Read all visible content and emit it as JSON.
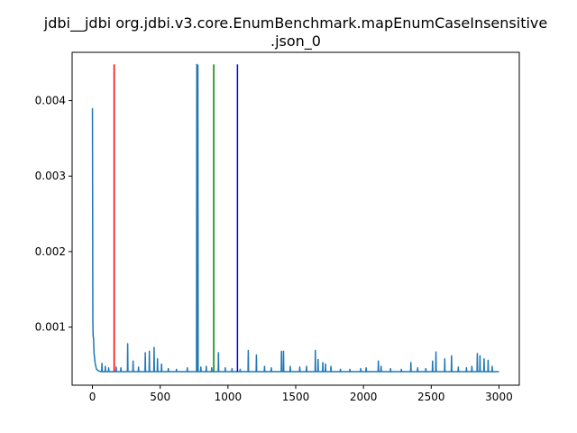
{
  "chart_data": {
    "type": "line",
    "title_line1": "jdbi__jdbi org.jdbi.v3.core.EnumBenchmark.mapEnumCaseInsensitive",
    "title_line2": ".json_0",
    "xlabel": "",
    "ylabel": "",
    "xlim": [
      -150,
      3150
    ],
    "ylim": [
      0.00023,
      0.00464
    ],
    "x_ticks": [
      0,
      500,
      1000,
      1500,
      2000,
      2500,
      3000
    ],
    "x_tick_labels": [
      "0",
      "500",
      "1000",
      "1500",
      "2000",
      "2500",
      "3000"
    ],
    "y_ticks": [
      0.001,
      0.002,
      0.003,
      0.004
    ],
    "y_tick_labels": [
      "0.001",
      "0.002",
      "0.003",
      "0.004"
    ],
    "grid": false,
    "series_color": "#1f77b4",
    "series": {
      "baseline": 0.00041,
      "start_points": [
        [
          0,
          0.0039
        ],
        [
          3,
          0.00105
        ],
        [
          5,
          0.00088
        ],
        [
          8,
          0.00085
        ],
        [
          12,
          0.00065
        ],
        [
          20,
          0.00052
        ],
        [
          30,
          0.00044
        ],
        [
          45,
          0.00042
        ],
        [
          60,
          0.00041
        ]
      ],
      "spikes": [
        [
          70,
          0.00052
        ],
        [
          95,
          0.00048
        ],
        [
          120,
          0.00046
        ],
        [
          175,
          0.00047
        ],
        [
          210,
          0.00046
        ],
        [
          260,
          0.00078
        ],
        [
          300,
          0.00055
        ],
        [
          340,
          0.00047
        ],
        [
          390,
          0.00066
        ],
        [
          420,
          0.00068
        ],
        [
          455,
          0.00073
        ],
        [
          480,
          0.00058
        ],
        [
          510,
          0.00051
        ],
        [
          560,
          0.00045
        ],
        [
          620,
          0.00044
        ],
        [
          700,
          0.00046
        ],
        [
          770,
          0.00448
        ],
        [
          778,
          0.00447
        ],
        [
          800,
          0.00047
        ],
        [
          840,
          0.00048
        ],
        [
          880,
          0.00046
        ],
        [
          930,
          0.00066
        ],
        [
          980,
          0.00046
        ],
        [
          1030,
          0.00045
        ],
        [
          1090,
          0.00044
        ],
        [
          1150,
          0.00069
        ],
        [
          1210,
          0.00063
        ],
        [
          1270,
          0.00048
        ],
        [
          1320,
          0.00046
        ],
        [
          1395,
          0.00068
        ],
        [
          1410,
          0.00068
        ],
        [
          1460,
          0.00048
        ],
        [
          1530,
          0.00047
        ],
        [
          1580,
          0.00048
        ],
        [
          1645,
          0.00069
        ],
        [
          1665,
          0.00057
        ],
        [
          1700,
          0.00053
        ],
        [
          1720,
          0.00051
        ],
        [
          1760,
          0.00048
        ],
        [
          1830,
          0.00044
        ],
        [
          1900,
          0.00044
        ],
        [
          1980,
          0.00045
        ],
        [
          2020,
          0.00046
        ],
        [
          2110,
          0.00055
        ],
        [
          2130,
          0.00048
        ],
        [
          2200,
          0.00045
        ],
        [
          2280,
          0.00044
        ],
        [
          2350,
          0.00053
        ],
        [
          2400,
          0.00046
        ],
        [
          2460,
          0.00045
        ],
        [
          2510,
          0.00055
        ],
        [
          2535,
          0.00067
        ],
        [
          2600,
          0.00058
        ],
        [
          2650,
          0.00062
        ],
        [
          2700,
          0.00047
        ],
        [
          2760,
          0.00046
        ],
        [
          2800,
          0.00048
        ],
        [
          2840,
          0.00065
        ],
        [
          2860,
          0.00062
        ],
        [
          2890,
          0.00058
        ],
        [
          2920,
          0.00056
        ],
        [
          2950,
          0.00048
        ],
        [
          2990,
          0.00041
        ]
      ],
      "x_end": 3000
    },
    "vlines": [
      {
        "x": 160,
        "ymin": 0.00041,
        "ymax": 0.00448,
        "color": "#ff0000"
      },
      {
        "x": 895,
        "ymin": 0.00041,
        "ymax": 0.00448,
        "color": "#008000"
      },
      {
        "x": 1070,
        "ymin": 0.00041,
        "ymax": 0.00448,
        "color": "#0000ff"
      }
    ]
  }
}
